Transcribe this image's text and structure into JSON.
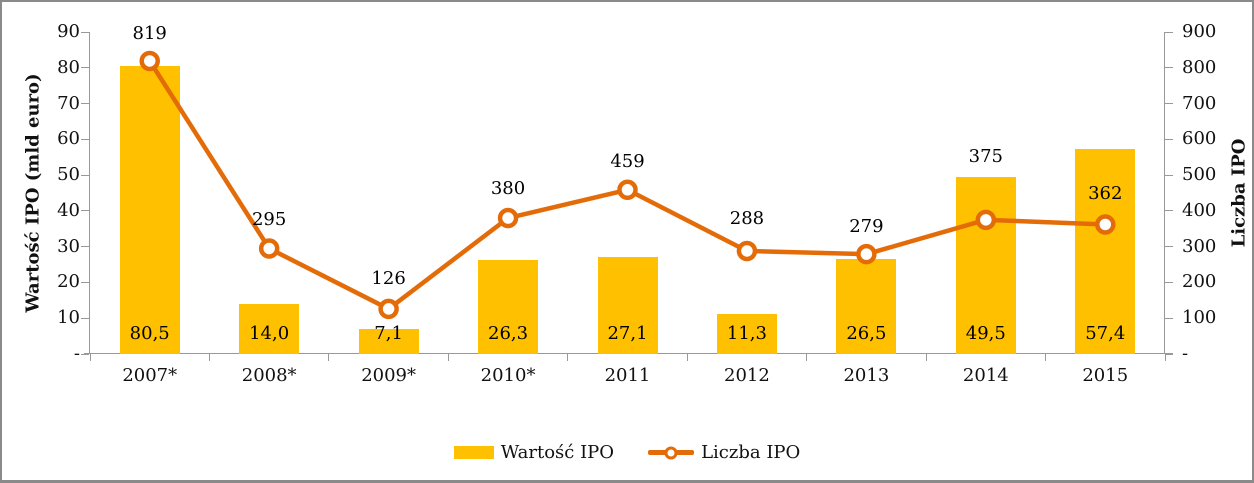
{
  "chart_data": {
    "type": "bar",
    "subtype": "combo-bar-line-dual-axis",
    "categories": [
      "2007*",
      "2008*",
      "2009*",
      "2010*",
      "2011",
      "2012",
      "2013",
      "2014",
      "2015"
    ],
    "series": [
      {
        "name": "Wartość IPO",
        "type": "bar",
        "axis": "left",
        "values": [
          80.5,
          14.0,
          7.1,
          26.3,
          27.1,
          11.3,
          26.5,
          49.5,
          57.4
        ],
        "labels": [
          "80,5",
          "14,0",
          "7,1",
          "26,3",
          "27,1",
          "11,3",
          "26,5",
          "49,5",
          "57,4"
        ],
        "color": "#FFC000"
      },
      {
        "name": "Liczba IPO",
        "type": "line",
        "axis": "right",
        "values": [
          819,
          295,
          126,
          380,
          459,
          288,
          279,
          375,
          362
        ],
        "labels": [
          "819",
          "295",
          "126",
          "380",
          "459",
          "288",
          "279",
          "375",
          "362"
        ],
        "color": "#E36C09",
        "marker": "circle-white-fill"
      }
    ],
    "left_axis": {
      "title": "Wartość IPO (mld euro)",
      "min": 0,
      "max": 90,
      "step": 10,
      "tick_labels": [
        "90",
        "80",
        "70",
        "60",
        "50",
        "40",
        "30",
        "20",
        "10",
        "-"
      ]
    },
    "right_axis": {
      "title": "Liczba IPO",
      "min": 0,
      "max": 900,
      "step": 100,
      "tick_labels": [
        "900",
        "800",
        "700",
        "600",
        "500",
        "400",
        "300",
        "200",
        "100",
        "-"
      ]
    },
    "legend": {
      "position": "bottom-center",
      "items": [
        {
          "label": "Wartość IPO",
          "swatch": "bar"
        },
        {
          "label": "Liczba IPO",
          "swatch": "line-marker"
        }
      ]
    },
    "layout_hints": {
      "grid": false,
      "axis_color": "#999999",
      "text_color": "#111111",
      "line_label_dy": [
        -27,
        -28,
        -30,
        -29,
        -28,
        -32,
        -27,
        -63,
        -30
      ],
      "bar_label_center_y": 332
    }
  }
}
